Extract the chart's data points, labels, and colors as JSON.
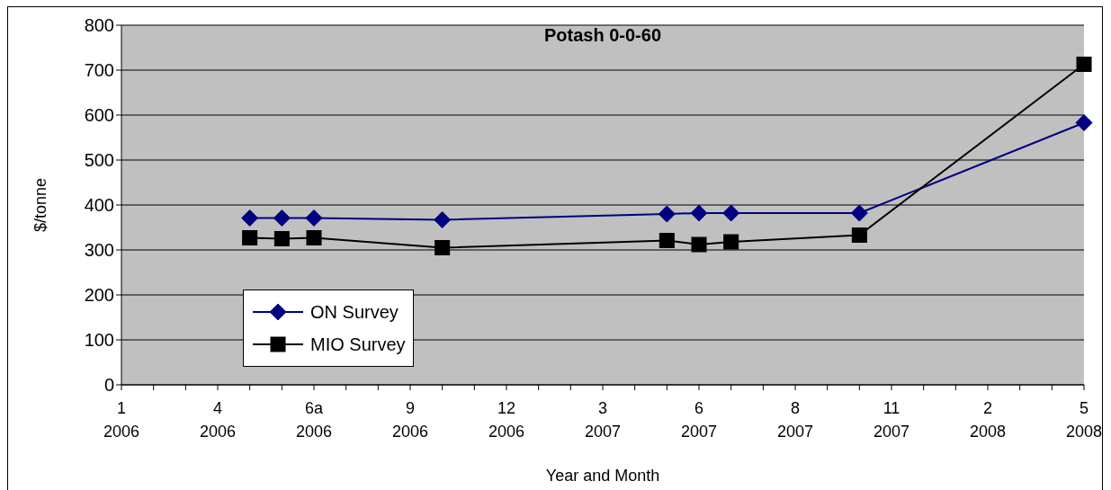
{
  "chart_data": {
    "type": "line",
    "title": "Potash 0-0-60",
    "xlabel": "Year and Month",
    "ylabel": "$/tonne",
    "categories": [
      "1\n2006",
      null,
      null,
      "4\n2006",
      null,
      null,
      "6a\n2006",
      null,
      null,
      "9\n2006",
      null,
      null,
      "12\n2006",
      null,
      null,
      "3\n2007",
      null,
      null,
      "6\n2007",
      null,
      null,
      "8\n2007",
      null,
      null,
      "11\n2007",
      null,
      null,
      "2\n2008",
      null,
      null,
      "5\n2008"
    ],
    "series": [
      {
        "name": "ON Survey",
        "color": "#000080",
        "marker": "diamond",
        "values": [
          null,
          null,
          null,
          null,
          371,
          371,
          371,
          null,
          null,
          null,
          367,
          null,
          null,
          null,
          null,
          null,
          null,
          380,
          382,
          382,
          null,
          null,
          null,
          382,
          null,
          null,
          null,
          null,
          null,
          null,
          583
        ]
      },
      {
        "name": "MIO Survey",
        "color": "#000000",
        "marker": "square",
        "values": [
          null,
          null,
          null,
          null,
          327,
          325,
          327,
          null,
          null,
          null,
          305,
          null,
          null,
          null,
          null,
          null,
          null,
          321,
          312,
          318,
          null,
          null,
          null,
          333,
          null,
          null,
          null,
          null,
          null,
          null,
          713
        ]
      }
    ],
    "ylim": [
      0,
      800
    ],
    "yticks": [
      0,
      100,
      200,
      300,
      400,
      500,
      600,
      700,
      800
    ],
    "grid": "y",
    "legend": "bottom left",
    "line_style": "solid"
  }
}
